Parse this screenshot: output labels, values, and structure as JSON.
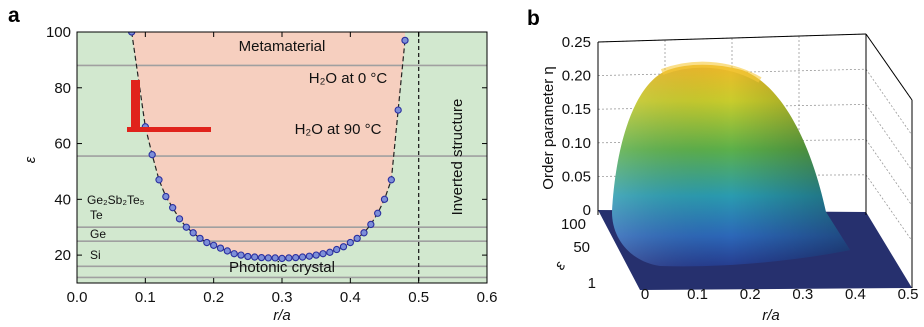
{
  "chart_data": [
    {
      "panel": "a",
      "type": "scatter",
      "xlabel": "r/a",
      "ylabel": "ε",
      "xlim": [
        0.0,
        0.6
      ],
      "ylim": [
        10,
        100
      ],
      "xticks": [
        "0.0",
        "0.1",
        "0.2",
        "0.3",
        "0.4",
        "0.5",
        "0.6"
      ],
      "yticks": [
        "20",
        "40",
        "60",
        "80",
        "100"
      ],
      "grid": false,
      "region_labels": {
        "top": "Metamaterial",
        "bottom": "Photonic crystal",
        "right": "Inverted structure"
      },
      "hlines": [
        {
          "label": "H₂O at 0 °C",
          "y": 88
        },
        {
          "label": "H₂O at 90 °C",
          "y": 55.5
        },
        {
          "label": "Ge₂Sb₂Te₅",
          "y": 30
        },
        {
          "label": "Te",
          "y": 25
        },
        {
          "label": "Ge",
          "y": 16
        },
        {
          "label": "Si",
          "y": 12
        }
      ],
      "vline_x": 0.5,
      "series": [
        {
          "x": [
            0.08,
            0.1,
            0.11,
            0.12,
            0.13,
            0.14,
            0.15,
            0.16,
            0.17,
            0.18,
            0.19,
            0.2,
            0.21,
            0.22,
            0.23,
            0.24,
            0.25,
            0.26,
            0.27,
            0.28,
            0.29,
            0.3,
            0.31,
            0.32,
            0.33,
            0.34,
            0.35,
            0.36,
            0.37,
            0.38,
            0.39,
            0.4,
            0.41,
            0.42,
            0.43,
            0.44,
            0.45,
            0.46,
            0.47,
            0.48
          ],
          "y": [
            100,
            66,
            56,
            47,
            41,
            37,
            33,
            30,
            28,
            26,
            24.5,
            23.5,
            22.5,
            21.5,
            20.5,
            20,
            19.5,
            19.3,
            19.1,
            19,
            19,
            18.8,
            19,
            19.1,
            19.3,
            19.6,
            20,
            20.5,
            21,
            22,
            23,
            24.5,
            26,
            28,
            31,
            35,
            40,
            47,
            72,
            97
          ]
        }
      ]
    },
    {
      "panel": "b",
      "type": "surface",
      "xlabel": "r/a",
      "ylabel": "ε",
      "zlabel": "Order parameter η",
      "xticks": [
        "0",
        "0.1",
        "0.2",
        "0.3",
        "0.4",
        "0.5"
      ],
      "yticks": [
        "1",
        "50",
        "100"
      ],
      "zticks": [
        "0",
        "0.05",
        "0.10",
        "0.15",
        "0.20",
        "0.25"
      ],
      "zlim": [
        0,
        0.25
      ],
      "peak_eta": 0.21
    }
  ],
  "panel_labels": {
    "a": "a",
    "b": "b"
  },
  "colors": {
    "green_region": "#d2e8cf",
    "pink_region": "#f6cfbf",
    "points": "#2a2fa0",
    "hline": "#a0a0a0",
    "marker": "#e0231c"
  }
}
